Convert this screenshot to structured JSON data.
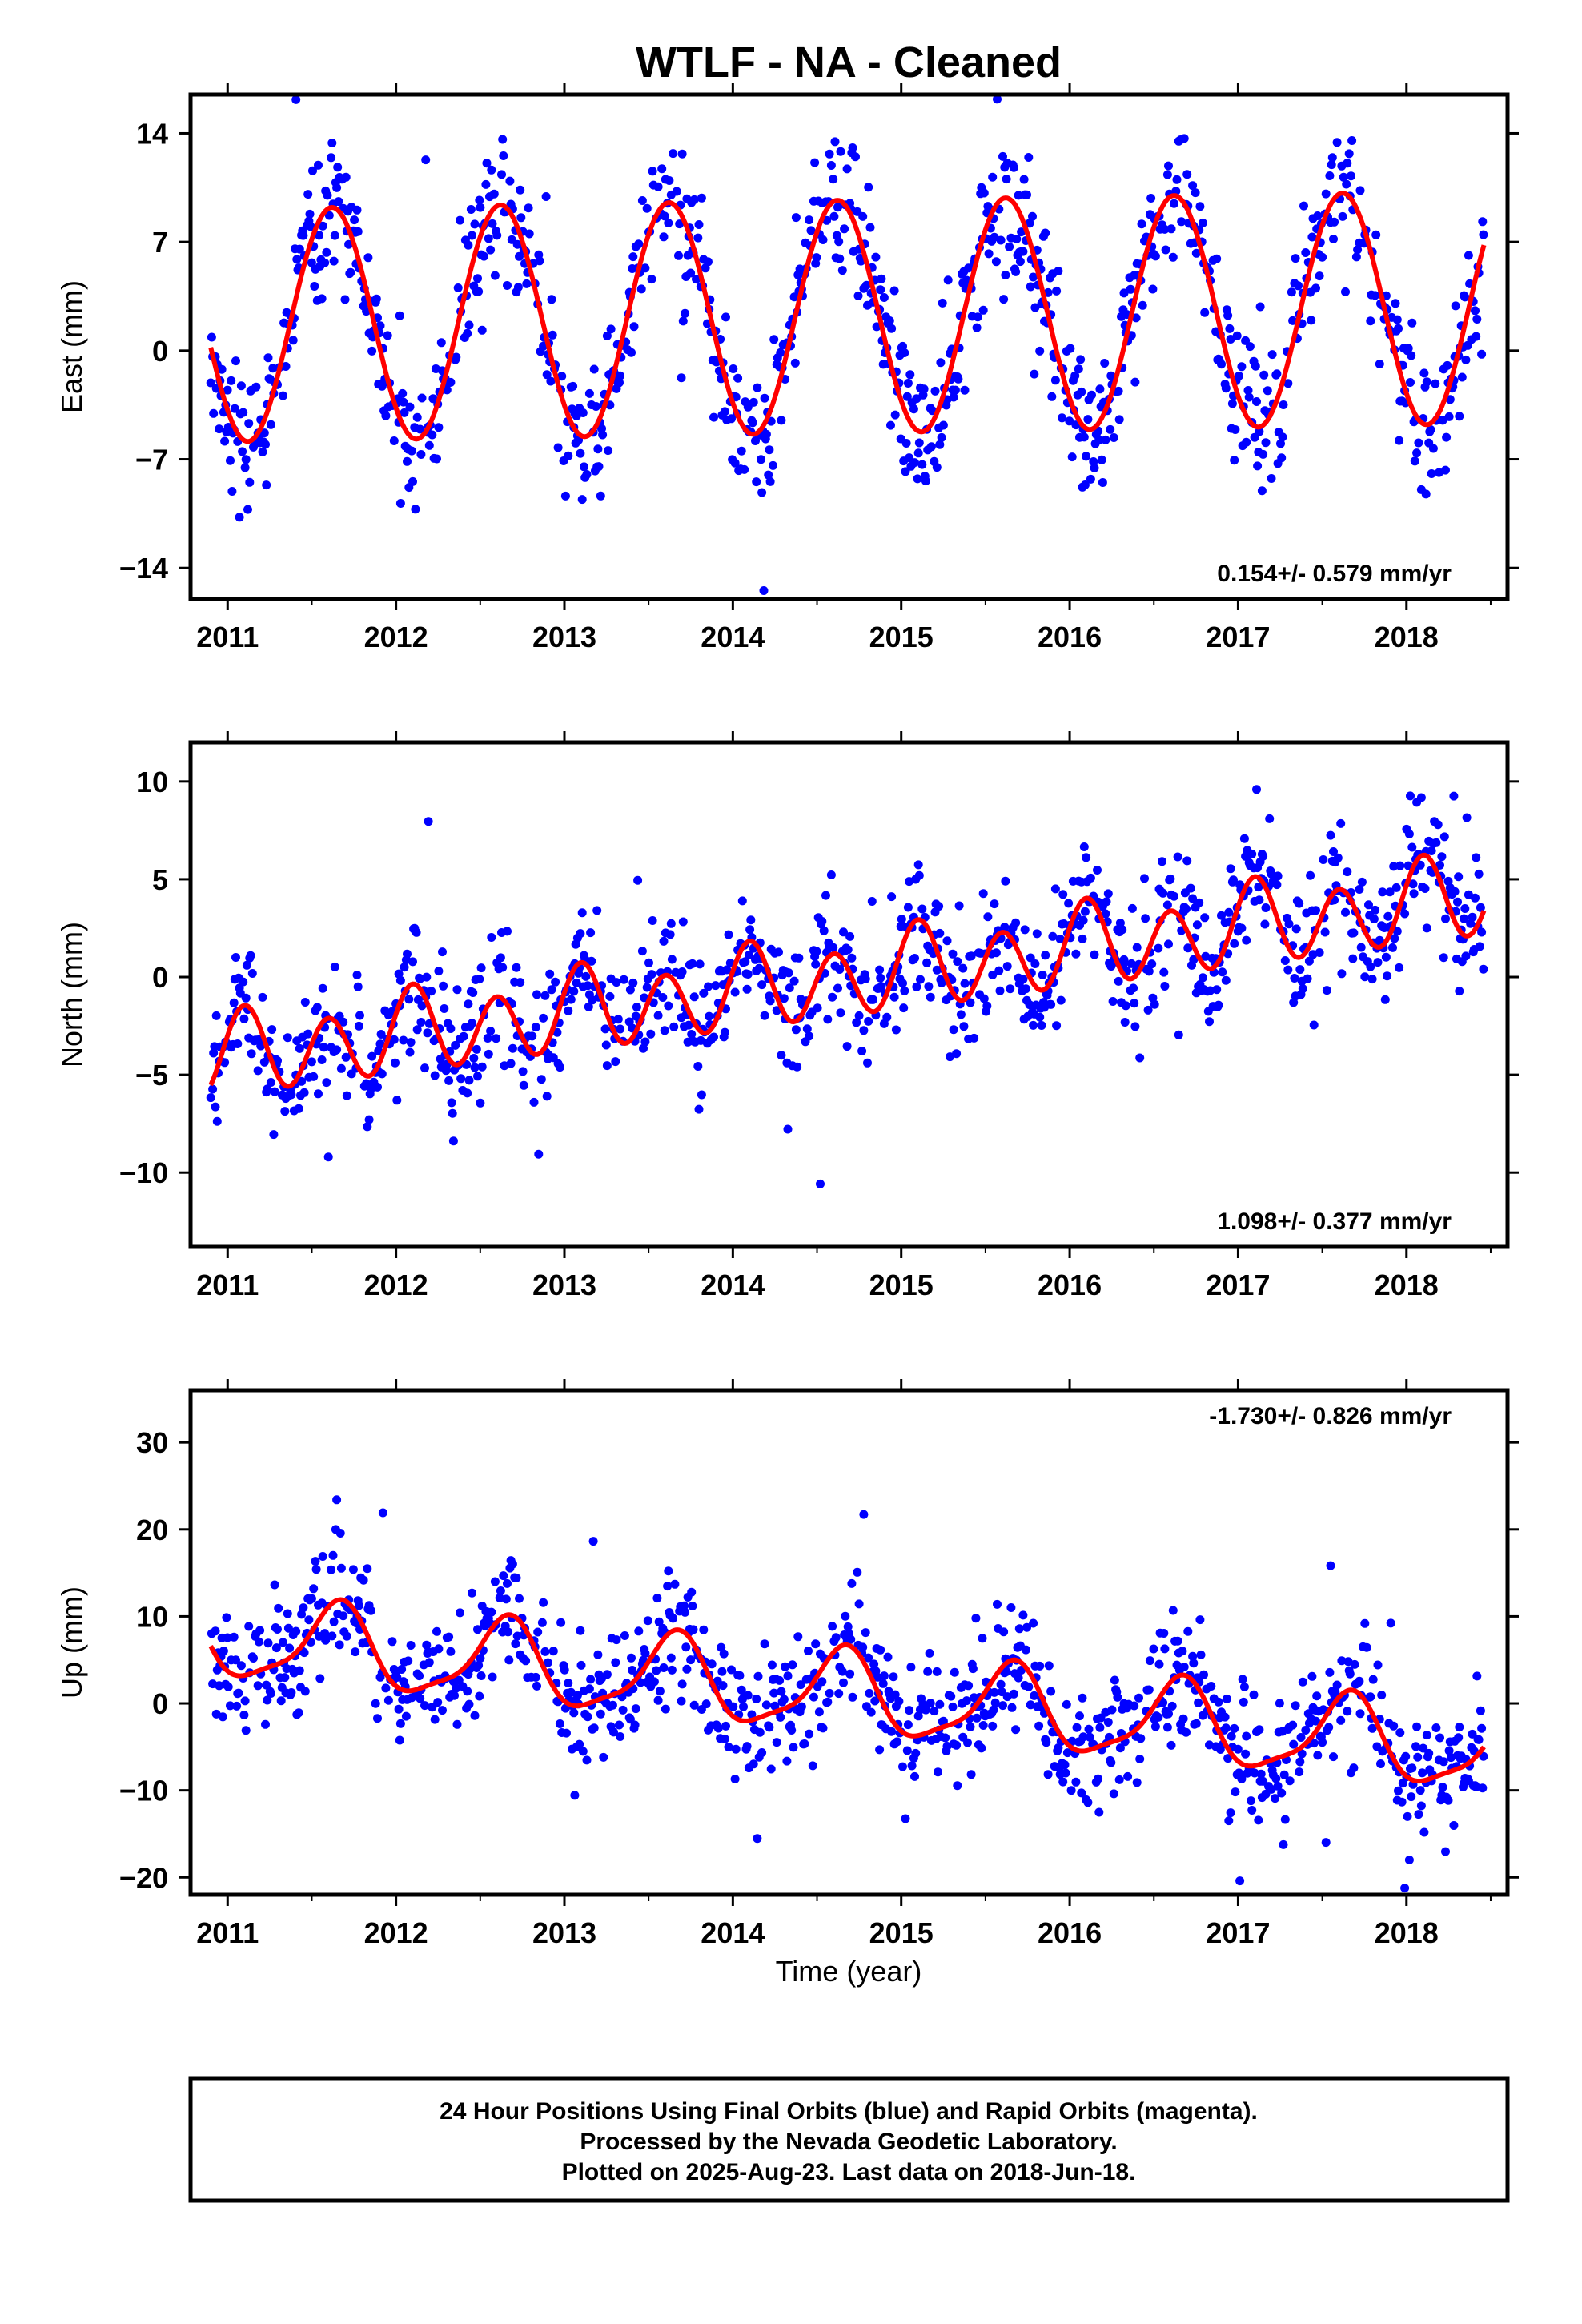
{
  "title": "WTLF  - NA - Cleaned",
  "xlabel": "Time (year)",
  "footer": [
    "24 Hour Positions Using Final Orbits (blue) and Rapid Orbits (magenta).",
    "Processed by the Nevada Geodetic Laboratory.",
    "Plotted on 2025-Aug-23. Last data on 2018-Jun-18."
  ],
  "colors": {
    "points": "#0000ff",
    "fit": "#ff0000",
    "frame": "#000000"
  },
  "chart_data": [
    {
      "type": "scatter",
      "ylabel": "East (mm)",
      "rate_text": "0.154+/- 0.579 mm/yr",
      "xlim": [
        2010.78,
        2018.6
      ],
      "ylim": [
        -16,
        16.5
      ],
      "x_ticks": [
        2011,
        2012,
        2013,
        2014,
        2015,
        2016,
        2017,
        2018
      ],
      "y_ticks": [
        -14,
        -7,
        0,
        7,
        14
      ],
      "grid": false,
      "data_range": [
        2010.9,
        2018.46
      ],
      "model": {
        "series": "fit",
        "mean": 2.2,
        "trend": 0.154,
        "t0": 2014.7,
        "annual_amp": 7.5,
        "annual_peak": 2011.62,
        "semiannual_amp": 0
      },
      "series": [
        {
          "name": "Final Orbits (blue)",
          "kind": "points",
          "scatter_sd": 2.2
        },
        {
          "name": "fit",
          "kind": "line"
        }
      ]
    },
    {
      "type": "scatter",
      "ylabel": "North (mm)",
      "rate_text": "1.098+/- 0.377 mm/yr",
      "xlim": [
        2010.78,
        2018.6
      ],
      "ylim": [
        -13.8,
        12
      ],
      "x_ticks": [
        2011,
        2012,
        2013,
        2014,
        2015,
        2016,
        2017,
        2018
      ],
      "y_ticks": [
        -10,
        -5,
        0,
        5,
        10
      ],
      "grid": false,
      "data_range": [
        2010.9,
        2018.46
      ],
      "model": {
        "series": "fit",
        "mean": 0.0,
        "trend": 1.098,
        "t0": 2014.7,
        "annual_amp": 0.6,
        "annual_peak": 2011.1,
        "semiannual_amp": 1.9,
        "semiannual_peak": 2011.1
      },
      "series": [
        {
          "name": "Final Orbits (blue)",
          "kind": "points",
          "scatter_sd": 1.7
        },
        {
          "name": "fit",
          "kind": "line"
        }
      ]
    },
    {
      "type": "scatter",
      "ylabel": "Up (mm)",
      "rate_text": "-1.730+/- 0.826 mm/yr",
      "xlim": [
        2010.78,
        2018.6
      ],
      "ylim": [
        -22,
        36
      ],
      "x_ticks": [
        2011,
        2012,
        2013,
        2014,
        2015,
        2016,
        2017,
        2018
      ],
      "y_ticks": [
        -20,
        -10,
        0,
        10,
        20,
        30
      ],
      "grid": false,
      "data_range": [
        2010.9,
        2018.46
      ],
      "model": {
        "series": "fit",
        "mean": 1.0,
        "trend": -1.73,
        "t0": 2014.7,
        "annual_amp": 4.6,
        "annual_peak": 2011.65,
        "semiannual_amp": 1.2,
        "semiannual_peak": 2011.2
      },
      "series": [
        {
          "name": "Final Orbits (blue)",
          "kind": "points",
          "scatter_sd": 3.5
        },
        {
          "name": "fit",
          "kind": "line"
        }
      ]
    }
  ]
}
